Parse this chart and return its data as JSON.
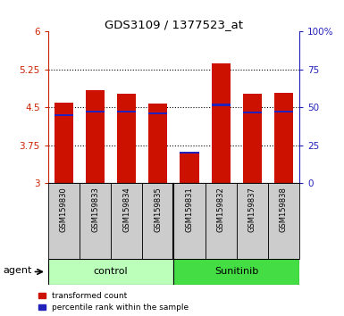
{
  "title": "GDS3109 / 1377523_at",
  "samples": [
    "GSM159830",
    "GSM159833",
    "GSM159834",
    "GSM159835",
    "GSM159831",
    "GSM159832",
    "GSM159837",
    "GSM159838"
  ],
  "groups": [
    "control",
    "control",
    "control",
    "control",
    "Sunitinib",
    "Sunitinib",
    "Sunitinib",
    "Sunitinib"
  ],
  "transformed_count": [
    4.6,
    4.85,
    4.78,
    4.58,
    3.62,
    5.38,
    4.78,
    4.79
  ],
  "percentile_rank": [
    4.35,
    4.42,
    4.42,
    4.38,
    3.6,
    4.55,
    4.4,
    4.42
  ],
  "ylim_left": [
    3.0,
    6.0
  ],
  "ylim_right": [
    0,
    100
  ],
  "yticks_left": [
    3.0,
    3.75,
    4.5,
    5.25,
    6.0
  ],
  "yticks_right": [
    0,
    25,
    50,
    75,
    100
  ],
  "ytick_labels_left": [
    "3",
    "3.75",
    "4.5",
    "5.25",
    "6"
  ],
  "ytick_labels_right": [
    "0",
    "25",
    "50",
    "75",
    "100%"
  ],
  "bar_color": "#cc1100",
  "blue_color": "#2222bb",
  "bar_bottom": 3.0,
  "group_colors_control": "#bbffbb",
  "group_colors_sunitinib": "#44dd44",
  "label_bg": "#cccccc",
  "background_color": "white",
  "left_tick_color": "#cc2200",
  "right_tick_color": "#2222bb",
  "legend_red_label": "transformed count",
  "legend_blue_label": "percentile rank within the sample",
  "agent_label": "agent",
  "control_label": "control",
  "sunitinib_label": "Sunitinib",
  "grid_yticks": [
    3.75,
    4.5,
    5.25
  ]
}
